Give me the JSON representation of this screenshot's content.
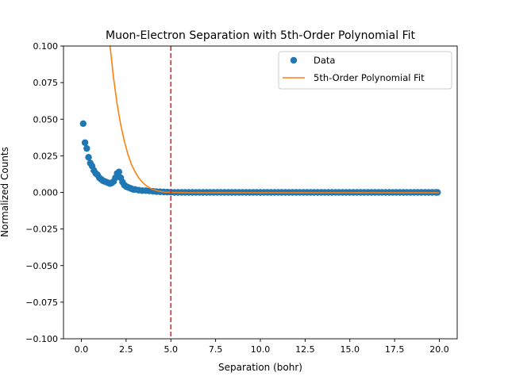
{
  "chart_data": {
    "type": "scatter",
    "title": "Muon-Electron Separation with 5th-Order Polynomial Fit",
    "xlabel": "Separation (bohr)",
    "ylabel": "Normalized Counts",
    "xlim": [
      -1.0,
      21.0
    ],
    "ylim": [
      -0.1,
      0.1
    ],
    "xticks": [
      0.0,
      2.5,
      5.0,
      7.5,
      10.0,
      12.5,
      15.0,
      17.5,
      20.0
    ],
    "xtick_labels": [
      "0.0",
      "2.5",
      "5.0",
      "7.5",
      "10.0",
      "12.5",
      "15.0",
      "17.5",
      "20.0"
    ],
    "yticks": [
      0.1,
      0.075,
      0.05,
      0.025,
      0.0,
      -0.025,
      -0.05,
      -0.075,
      -0.1
    ],
    "ytick_labels": [
      "0.100",
      "0.075",
      "0.050",
      "0.025",
      "0.000",
      "−0.025",
      "−0.050",
      "−0.075",
      "−0.100"
    ],
    "grid": false,
    "legend": {
      "position": "top-right"
    },
    "series": [
      {
        "name": "Data",
        "kind": "scatter",
        "color": "#1f77b4",
        "x": [
          0.1,
          0.2,
          0.3,
          0.4,
          0.5,
          0.6,
          0.7,
          0.8,
          0.9,
          1.0,
          1.1,
          1.2,
          1.3,
          1.4,
          1.5,
          1.6,
          1.7,
          1.8,
          1.9,
          2.0,
          2.1,
          2.2,
          2.3,
          2.4,
          2.5,
          2.6,
          2.7,
          2.8,
          2.9,
          3.0,
          3.2,
          3.4,
          3.6,
          3.8,
          4.0,
          4.2,
          4.4,
          4.6,
          4.8,
          5.0,
          5.2,
          5.4,
          5.6,
          5.8,
          6.0,
          6.2,
          6.4,
          6.6,
          6.8,
          7.0,
          7.2,
          7.4,
          7.6,
          7.8,
          8.0,
          8.2,
          8.4,
          8.6,
          8.8,
          9.0,
          9.2,
          9.4,
          9.6,
          9.8,
          10.0,
          10.2,
          10.4,
          10.6,
          10.8,
          11.0,
          11.2,
          11.4,
          11.6,
          11.8,
          12.0,
          12.2,
          12.4,
          12.6,
          12.8,
          13.0,
          13.2,
          13.4,
          13.6,
          13.8,
          14.0,
          14.2,
          14.4,
          14.6,
          14.8,
          15.0,
          15.2,
          15.4,
          15.6,
          15.8,
          16.0,
          16.2,
          16.4,
          16.6,
          16.8,
          17.0,
          17.2,
          17.4,
          17.6,
          17.8,
          18.0,
          18.2,
          18.4,
          18.6,
          18.8,
          19.0,
          19.2,
          19.4,
          19.6,
          19.8,
          19.9
        ],
        "y": [
          0.047,
          0.034,
          0.03,
          0.024,
          0.02,
          0.018,
          0.015,
          0.013,
          0.012,
          0.01,
          0.009,
          0.008,
          0.0075,
          0.007,
          0.0065,
          0.006,
          0.0065,
          0.0075,
          0.01,
          0.013,
          0.014,
          0.01,
          0.007,
          0.005,
          0.004,
          0.0035,
          0.003,
          0.0025,
          0.002,
          0.002,
          0.0015,
          0.0012,
          0.0012,
          0.001,
          0.0008,
          0.0005,
          0.0004,
          0.0003,
          0.0002,
          0.0001,
          0.0,
          0.0,
          0.0,
          0.0,
          0.0,
          0.0,
          0.0,
          0.0,
          0.0,
          0.0,
          0.0,
          0.0,
          0.0,
          0.0,
          0.0,
          0.0,
          0.0,
          0.0,
          0.0,
          0.0,
          0.0,
          0.0,
          0.0,
          0.0,
          0.0,
          0.0,
          0.0,
          0.0,
          0.0,
          0.0,
          0.0,
          0.0,
          0.0,
          0.0,
          0.0,
          0.0,
          0.0,
          0.0,
          0.0,
          0.0,
          0.0,
          0.0,
          0.0,
          0.0,
          0.0,
          0.0,
          0.0,
          0.0,
          0.0,
          0.0,
          0.0,
          0.0,
          0.0,
          0.0,
          0.0,
          0.0,
          0.0,
          0.0,
          0.0,
          0.0,
          0.0,
          0.0,
          0.0,
          0.0,
          0.0,
          0.0,
          0.0,
          0.0,
          0.0,
          0.0,
          0.0,
          0.0,
          0.0,
          0.0,
          0.0
        ]
      },
      {
        "name": "5th-Order Polynomial Fit",
        "kind": "line",
        "color": "#ff7f0e",
        "x": [
          1.6,
          1.8,
          2.0,
          2.2,
          2.4,
          2.6,
          2.8,
          3.0,
          3.2,
          3.4,
          3.6,
          3.8,
          4.0,
          4.3,
          4.6,
          5.0,
          6.0,
          8.0,
          10.0,
          12.0,
          14.0,
          16.0,
          18.0,
          20.0
        ],
        "y": [
          0.1,
          0.078,
          0.06,
          0.046,
          0.035,
          0.026,
          0.019,
          0.014,
          0.01,
          0.007,
          0.0048,
          0.0032,
          0.002,
          0.0009,
          0.0003,
          0.0,
          -0.0002,
          -0.0002,
          -0.0002,
          -0.0002,
          -0.0002,
          -0.0002,
          -0.0002,
          -0.0002
        ]
      }
    ],
    "annotations": [
      {
        "type": "vline",
        "x": 5.0,
        "color": "#d62728",
        "style": "dashed"
      }
    ]
  }
}
